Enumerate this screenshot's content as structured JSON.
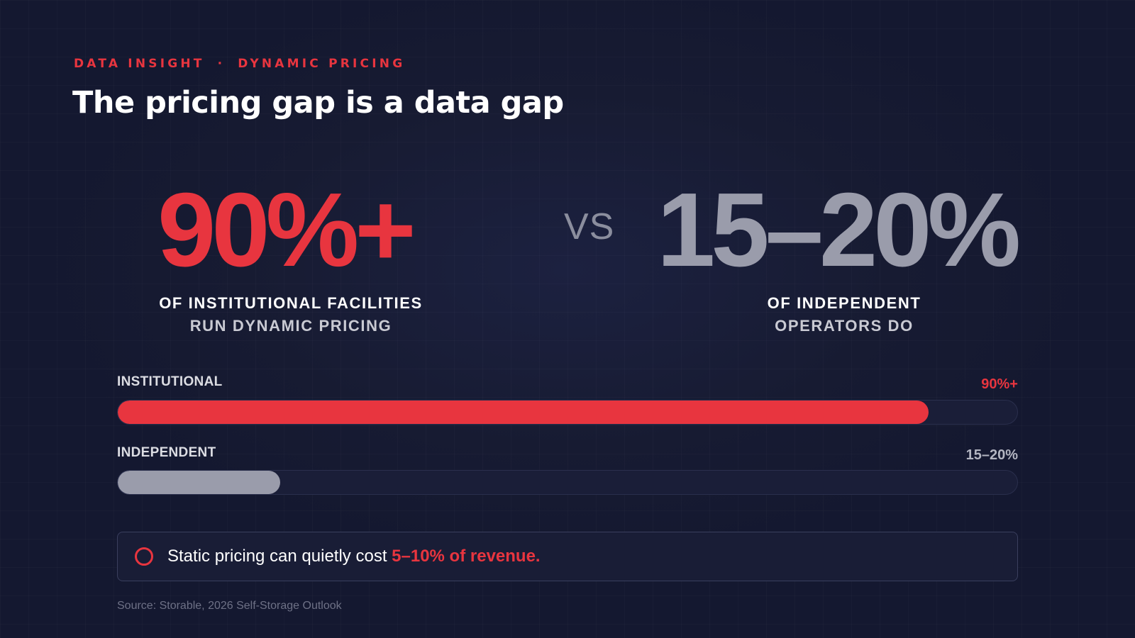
{
  "eyebrow": {
    "left": "DATA INSIGHT",
    "separator": "·",
    "right": "DYNAMIC PRICING"
  },
  "title": "The pricing gap is a data gap",
  "stats": {
    "left": {
      "value": "90%+",
      "line1": "OF INSTITUTIONAL FACILITIES",
      "line2": "RUN DYNAMIC PRICING"
    },
    "vs": "VS",
    "right": {
      "value": "15–20%",
      "line1": "OF INDEPENDENT",
      "line2": "OPERATORS DO"
    }
  },
  "colors": {
    "accent": "#e8353f",
    "muted": "#9a9cab",
    "background": "#161a2e"
  },
  "chart_data": {
    "type": "bar",
    "orientation": "horizontal",
    "categories": [
      "INSTITUTIONAL",
      "INDEPENDENT"
    ],
    "values": [
      90,
      18
    ],
    "value_labels": [
      "90%+",
      "15–20%"
    ],
    "xlim": [
      0,
      100
    ],
    "colors": [
      "#e8353f",
      "#9a9cab"
    ],
    "grid": false
  },
  "callout": {
    "icon": "circle-icon",
    "text": "Static pricing can quietly cost ",
    "highlight": "5–10% of revenue."
  },
  "source": "Source: Storable, 2026 Self-Storage Outlook"
}
